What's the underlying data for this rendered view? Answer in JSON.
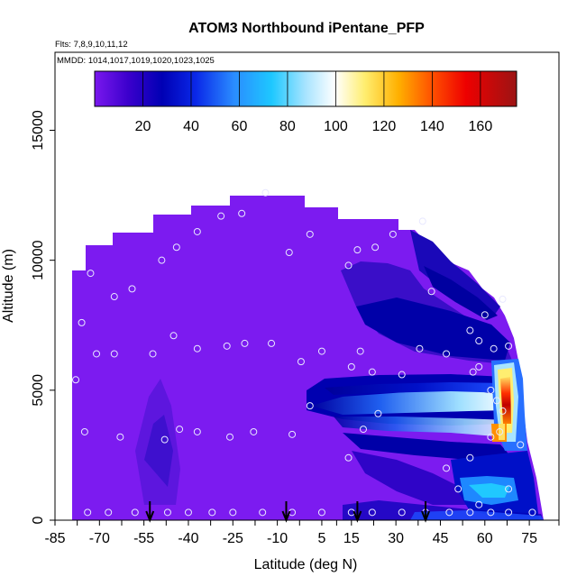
{
  "chart_data": {
    "type": "heatmap",
    "title": "ATOM3 Northbound iPentane_PFP",
    "flights_note": "Flts: 7,8,9,10,11,12",
    "dates_note": "MMDD: 1014,1017,1019,1020,1023,1025",
    "xlabel": "Latitude (deg N)",
    "ylabel": "Altitude (m)",
    "x_ticks": [
      "-85",
      "-70",
      "-55",
      "-40",
      "-25",
      "-10",
      "5",
      "15",
      "30",
      "45",
      "60",
      "75"
    ],
    "y_ticks": [
      "0",
      "5000",
      "10000",
      "15000"
    ],
    "xlim": [
      -85,
      85
    ],
    "ylim": [
      0,
      18000
    ],
    "colorbar": {
      "ticks": [
        "20",
        "40",
        "60",
        "80",
        "100",
        "120",
        "140",
        "160"
      ],
      "range": [
        0,
        175
      ]
    },
    "arrow_latitudes": [
      -53,
      -7,
      17,
      40
    ],
    "sample_points": [
      [
        -74,
        300
      ],
      [
        -67,
        300
      ],
      [
        -58,
        300
      ],
      [
        -47,
        300
      ],
      [
        -40,
        300
      ],
      [
        -32,
        300
      ],
      [
        -25,
        300
      ],
      [
        -15,
        300
      ],
      [
        -5,
        300
      ],
      [
        5,
        300
      ],
      [
        15,
        300
      ],
      [
        22,
        300
      ],
      [
        32,
        300
      ],
      [
        40,
        300
      ],
      [
        48,
        300
      ],
      [
        55,
        300
      ],
      [
        62,
        300
      ],
      [
        68,
        300
      ],
      [
        76,
        300
      ],
      [
        -78,
        5400
      ],
      [
        -75,
        3400
      ],
      [
        -76,
        7600
      ],
      [
        -71,
        6400
      ],
      [
        -65,
        6400
      ],
      [
        -52,
        6400
      ],
      [
        -45,
        7100
      ],
      [
        -37,
        6600
      ],
      [
        -27,
        6700
      ],
      [
        -21,
        6800
      ],
      [
        -12,
        6800
      ],
      [
        -2,
        6100
      ],
      [
        5,
        6500
      ],
      [
        15,
        5900
      ],
      [
        18,
        6500
      ],
      [
        22,
        5700
      ],
      [
        32,
        5600
      ],
      [
        38,
        6600
      ],
      [
        47,
        6400
      ],
      [
        56,
        5700
      ],
      [
        58,
        5900
      ],
      [
        -63,
        3200
      ],
      [
        -48,
        3100
      ],
      [
        -43,
        3500
      ],
      [
        -37,
        3400
      ],
      [
        -26,
        3200
      ],
      [
        -18,
        3400
      ],
      [
        -5,
        3300
      ],
      [
        1,
        4400
      ],
      [
        14,
        2400
      ],
      [
        19,
        3500
      ],
      [
        24,
        4100
      ],
      [
        47,
        2000
      ],
      [
        51,
        1200
      ],
      [
        55,
        2400
      ],
      [
        58,
        600
      ],
      [
        62,
        3200
      ],
      [
        65,
        3400
      ],
      [
        68,
        1200
      ],
      [
        72,
        2900
      ],
      [
        -73,
        9500
      ],
      [
        -65,
        8600
      ],
      [
        -59,
        8900
      ],
      [
        -49,
        10000
      ],
      [
        -44,
        10500
      ],
      [
        -37,
        11100
      ],
      [
        -29,
        11700
      ],
      [
        -22,
        11800
      ],
      [
        -14,
        12600
      ],
      [
        -6,
        10300
      ],
      [
        1,
        11000
      ],
      [
        14,
        9800
      ],
      [
        17,
        10400
      ],
      [
        23,
        10500
      ],
      [
        29,
        11000
      ],
      [
        39,
        11500
      ],
      [
        42,
        8800
      ],
      [
        55,
        7300
      ],
      [
        58,
        6900
      ],
      [
        60,
        7900
      ],
      [
        63,
        6600
      ],
      [
        66,
        8500
      ],
      [
        68,
        6700
      ],
      [
        64,
        4600
      ],
      [
        66,
        4200
      ],
      [
        62,
        5000
      ]
    ]
  }
}
